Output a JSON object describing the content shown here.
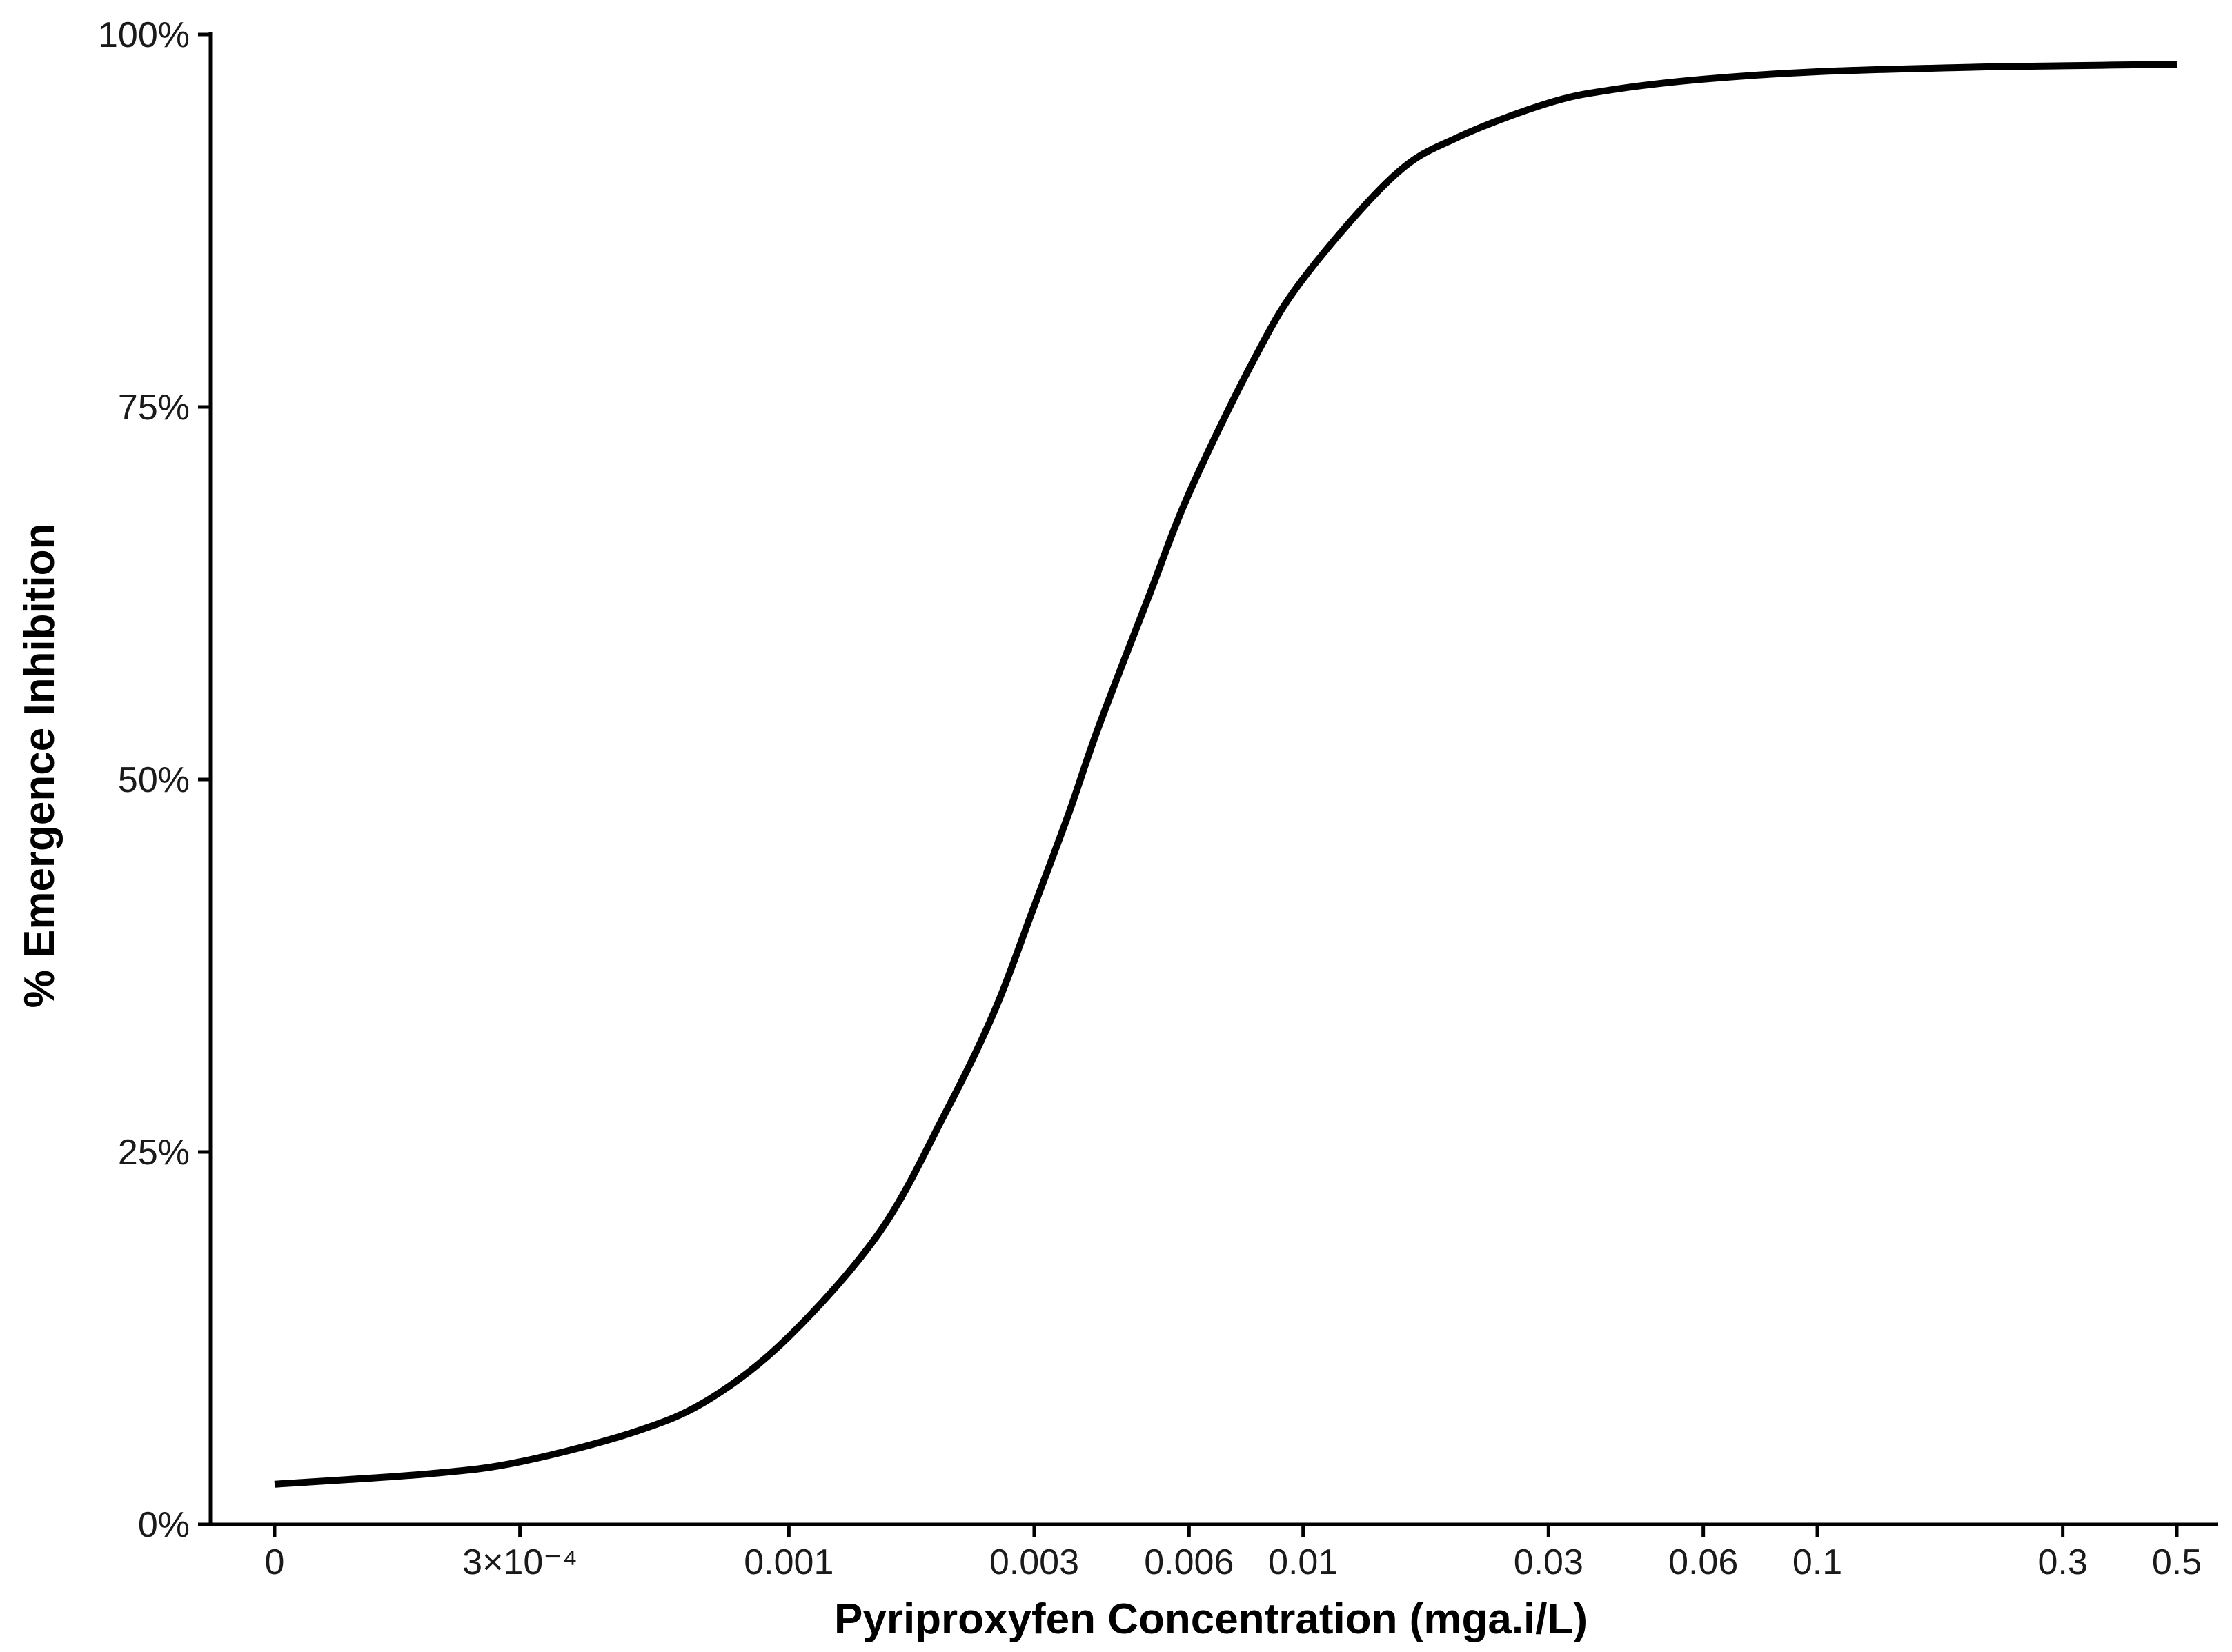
{
  "chart_data": {
    "type": "line",
    "title": "",
    "xlabel": "Pyriproxyfen Concentration (mga.i/L)",
    "ylabel": "% Emergence Inhibition",
    "x_scale": "log",
    "xlim": [
      0.0001,
      0.5
    ],
    "ylim": [
      0,
      100
    ],
    "x_ticks": [
      {
        "value": 0.0001,
        "label": "0"
      },
      {
        "value": 0.0003,
        "label": "3×10⁻⁴"
      },
      {
        "value": 0.001,
        "label": "0.001"
      },
      {
        "value": 0.003,
        "label": "0.003"
      },
      {
        "value": 0.006,
        "label": "0.006"
      },
      {
        "value": 0.01,
        "label": "0.01"
      },
      {
        "value": 0.03,
        "label": "0.03"
      },
      {
        "value": 0.06,
        "label": "0.06"
      },
      {
        "value": 0.1,
        "label": "0.1"
      },
      {
        "value": 0.3,
        "label": "0.3"
      },
      {
        "value": 0.5,
        "label": "0.5"
      }
    ],
    "y_ticks": [
      {
        "value": 0,
        "label": "0%"
      },
      {
        "value": 25,
        "label": "25%"
      },
      {
        "value": 50,
        "label": "50%"
      },
      {
        "value": 75,
        "label": "75%"
      },
      {
        "value": 100,
        "label": "100%"
      }
    ],
    "grid": false,
    "legend": "none",
    "line_color": "#000000",
    "series": [
      {
        "x": [
          0.0001,
          0.0002,
          0.0003,
          0.0005,
          0.0007,
          0.001,
          0.0015,
          0.002,
          0.0025,
          0.003,
          0.0035,
          0.004,
          0.005,
          0.006,
          0.008,
          0.01,
          0.015,
          0.02,
          0.03,
          0.04,
          0.06,
          0.1,
          0.2,
          0.3,
          0.5
        ],
        "y": [
          2.7,
          3.4,
          4.2,
          6.2,
          8.4,
          12.6,
          19.6,
          27.4,
          34.3,
          41.5,
          47.7,
          53.5,
          62.2,
          69.2,
          78.1,
          83.6,
          90.5,
          93.1,
          95.4,
          96.3,
          97.0,
          97.5,
          97.8,
          97.9,
          98.0
        ]
      }
    ]
  }
}
